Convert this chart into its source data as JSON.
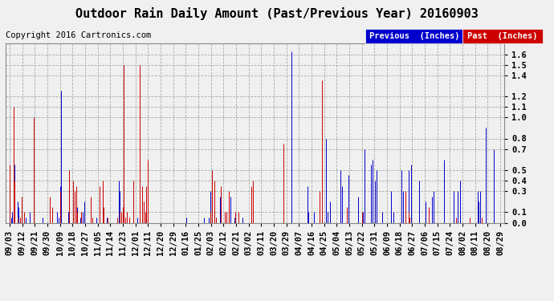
{
  "title": "Outdoor Rain Daily Amount (Past/Previous Year) 20160903",
  "copyright": "Copyright 2016 Cartronics.com",
  "legend_previous": "Previous  (Inches)",
  "legend_past": "Past  (Inches)",
  "legend_previous_color": "#0000cc",
  "legend_past_color": "#cc0000",
  "legend_previous_bg": "#0000cc",
  "legend_past_bg": "#cc0000",
  "yticks": [
    0.0,
    0.1,
    0.3,
    0.4,
    0.5,
    0.7,
    0.8,
    1.0,
    1.1,
    1.2,
    1.4,
    1.5,
    1.6
  ],
  "ylim": [
    0.0,
    1.7
  ],
  "bg_color": "#f0f0f0",
  "plot_bg_color": "#f0f0f0",
  "grid_color": "#aaaaaa",
  "title_fontsize": 11,
  "copyright_fontsize": 7.5,
  "tick_fontsize": 7.5,
  "legend_fontsize": 7.5,
  "x_labels": [
    "09/03",
    "09/12",
    "09/21",
    "09/30",
    "10/09",
    "10/18",
    "10/27",
    "11/05",
    "11/14",
    "11/23",
    "12/01",
    "12/11",
    "12/20",
    "12/29",
    "01/16",
    "01/25",
    "02/03",
    "02/12",
    "02/21",
    "03/02",
    "03/11",
    "03/20",
    "03/29",
    "04/07",
    "04/16",
    "04/25",
    "05/04",
    "05/13",
    "05/22",
    "05/31",
    "06/09",
    "06/18",
    "06/27",
    "07/06",
    "07/15",
    "07/24",
    "08/02",
    "08/11",
    "08/20",
    "08/29"
  ],
  "n_points": 370,
  "prev_data": [
    0.3,
    0.05,
    0.1,
    0.0,
    0.55,
    0.0,
    0.2,
    0.15,
    0.0,
    0.0,
    0.0,
    0.0,
    0.05,
    0.0,
    0.0,
    0.1,
    0.0,
    0.0,
    0.0,
    0.0,
    0.0,
    0.0,
    0.0,
    0.0,
    0.0,
    0.05,
    0.0,
    0.0,
    0.0,
    0.0,
    0.0,
    0.0,
    0.0,
    0.0,
    0.0,
    0.0,
    0.1,
    0.05,
    0.35,
    1.25,
    0.0,
    0.0,
    0.0,
    0.0,
    0.1,
    0.3,
    0.0,
    0.0,
    0.0,
    0.0,
    0.0,
    0.15,
    0.0,
    0.05,
    0.0,
    0.1,
    0.2,
    0.0,
    0.0,
    0.0,
    0.0,
    0.0,
    0.0,
    0.0,
    0.0,
    0.05,
    0.0,
    0.0,
    0.05,
    0.0,
    0.35,
    0.0,
    0.0,
    0.05,
    0.0,
    0.0,
    0.0,
    0.0,
    0.0,
    0.0,
    0.0,
    0.0,
    0.4,
    0.3,
    0.0,
    0.1,
    0.2,
    0.0,
    0.0,
    0.0,
    0.0,
    0.0,
    0.0,
    0.0,
    0.0,
    0.0,
    0.05,
    0.0,
    0.05,
    0.0,
    0.0,
    0.0,
    0.05,
    0.0,
    0.0,
    0.0,
    0.0,
    0.0,
    0.0,
    0.0,
    0.0,
    0.0,
    0.0,
    0.0,
    0.0,
    0.0,
    0.0,
    0.0,
    0.0,
    0.0,
    0.0,
    0.0,
    0.0,
    0.0,
    0.0,
    0.0,
    0.0,
    0.0,
    0.0,
    0.0,
    0.0,
    0.0,
    0.0,
    0.05,
    0.0,
    0.0,
    0.0,
    0.0,
    0.0,
    0.0,
    0.0,
    0.0,
    0.0,
    0.0,
    0.0,
    0.0,
    0.05,
    0.0,
    0.0,
    0.0,
    0.05,
    0.3,
    0.0,
    0.0,
    0.0,
    0.05,
    0.0,
    0.0,
    0.25,
    0.3,
    0.0,
    0.0,
    0.0,
    0.0,
    0.0,
    0.0,
    0.25,
    0.0,
    0.0,
    0.05,
    0.0,
    0.0,
    0.0,
    0.0,
    0.0,
    0.05,
    0.0,
    0.0,
    0.0,
    0.0,
    0.0,
    0.0,
    0.0,
    0.0,
    0.0,
    0.0,
    0.0,
    0.0,
    0.0,
    0.0,
    0.0,
    0.0,
    0.0,
    0.0,
    0.0,
    0.0,
    0.0,
    0.0,
    0.0,
    0.0,
    0.0,
    0.0,
    0.0,
    0.0,
    0.0,
    0.0,
    0.0,
    0.0,
    0.0,
    0.0,
    0.0,
    0.0,
    1.63,
    0.0,
    0.0,
    0.0,
    0.0,
    0.0,
    0.0,
    0.0,
    0.0,
    0.0,
    0.0,
    0.0,
    0.35,
    0.1,
    0.0,
    0.0,
    0.0,
    0.1,
    0.0,
    0.0,
    0.0,
    0.0,
    0.0,
    0.0,
    0.0,
    0.0,
    0.8,
    0.1,
    0.0,
    0.2,
    0.0,
    0.0,
    0.0,
    0.0,
    0.0,
    0.0,
    0.0,
    0.5,
    0.35,
    0.0,
    0.0,
    0.0,
    0.0,
    0.45,
    0.0,
    0.0,
    0.0,
    0.0,
    0.0,
    0.0,
    0.25,
    0.0,
    0.0,
    0.0,
    0.1,
    0.7,
    0.0,
    0.0,
    0.0,
    0.0,
    0.55,
    0.6,
    0.0,
    0.4,
    0.5,
    0.0,
    0.0,
    0.0,
    0.1,
    0.0,
    0.0,
    0.0,
    0.0,
    0.0,
    0.0,
    0.3,
    0.0,
    0.1,
    0.0,
    0.0,
    0.0,
    0.0,
    0.0,
    0.5,
    0.3,
    0.0,
    0.0,
    0.0,
    0.5,
    0.0,
    0.55,
    0.0,
    0.0,
    0.0,
    0.0,
    0.0,
    0.4,
    0.0,
    0.0,
    0.0,
    0.0,
    0.2,
    0.0,
    0.0,
    0.0,
    0.0,
    0.25,
    0.3,
    0.0,
    0.0,
    0.0,
    0.0,
    0.0,
    0.0,
    0.0,
    0.6,
    0.0,
    0.0,
    0.0,
    0.0,
    0.0,
    0.0,
    0.3,
    0.0,
    0.0,
    0.3,
    0.0,
    0.4,
    0.0,
    0.0,
    0.0,
    0.0,
    0.0,
    0.0,
    0.0,
    0.0,
    0.0,
    0.0,
    0.0,
    0.0,
    0.3,
    0.2,
    0.3,
    0.0,
    0.0,
    0.0,
    0.9,
    0.0,
    0.0,
    0.0,
    0.0,
    0.0,
    0.7,
    0.0,
    0.0,
    0.0,
    0.0,
    0.0,
    0.0,
    0.0
  ],
  "past_data": [
    0.55,
    0.0,
    0.0,
    1.1,
    0.4,
    0.0,
    0.05,
    0.0,
    0.05,
    0.25,
    0.0,
    0.1,
    0.0,
    0.0,
    0.0,
    0.0,
    0.0,
    0.0,
    1.0,
    0.0,
    0.0,
    0.0,
    0.0,
    0.0,
    0.0,
    0.0,
    0.0,
    0.0,
    0.0,
    0.0,
    0.25,
    0.0,
    0.15,
    0.0,
    0.0,
    0.0,
    0.0,
    0.0,
    0.3,
    0.0,
    0.0,
    0.0,
    0.0,
    0.0,
    0.0,
    0.5,
    0.0,
    0.0,
    0.4,
    0.3,
    0.35,
    0.1,
    0.0,
    0.0,
    0.1,
    0.0,
    0.0,
    0.0,
    0.0,
    0.0,
    0.0,
    0.25,
    0.05,
    0.0,
    0.0,
    0.0,
    0.0,
    0.0,
    0.35,
    0.0,
    0.4,
    0.15,
    0.0,
    0.0,
    0.05,
    0.0,
    0.0,
    0.0,
    0.0,
    0.0,
    0.0,
    0.05,
    0.0,
    0.1,
    0.1,
    0.15,
    1.5,
    0.05,
    0.1,
    0.0,
    0.05,
    0.0,
    0.0,
    0.4,
    0.0,
    0.0,
    0.0,
    0.0,
    1.5,
    0.0,
    0.35,
    0.2,
    0.1,
    0.35,
    0.6,
    0.0,
    0.0,
    0.0,
    0.0,
    0.0,
    0.0,
    0.0,
    0.0,
    0.0,
    0.0,
    0.0,
    0.0,
    0.0,
    0.0,
    0.0,
    0.0,
    0.0,
    0.0,
    0.0,
    0.0,
    0.0,
    0.0,
    0.0,
    0.0,
    0.0,
    0.0,
    0.0,
    0.0,
    0.0,
    0.0,
    0.0,
    0.0,
    0.0,
    0.0,
    0.0,
    0.0,
    0.0,
    0.0,
    0.0,
    0.0,
    0.0,
    0.0,
    0.0,
    0.0,
    0.0,
    0.0,
    0.1,
    0.5,
    0.0,
    0.4,
    0.05,
    0.0,
    0.0,
    0.0,
    0.35,
    0.0,
    0.0,
    0.1,
    0.1,
    0.0,
    0.3,
    0.0,
    0.0,
    0.0,
    0.0,
    0.1,
    0.0,
    0.1,
    0.0,
    0.0,
    0.0,
    0.0,
    0.0,
    0.0,
    0.0,
    0.0,
    0.0,
    0.35,
    0.4,
    0.0,
    0.0,
    0.0,
    0.0,
    0.0,
    0.0,
    0.0,
    0.0,
    0.0,
    0.0,
    0.0,
    0.0,
    0.0,
    0.0,
    0.0,
    0.0,
    0.0,
    0.0,
    0.0,
    0.0,
    0.0,
    0.0,
    0.75,
    0.0,
    0.0,
    0.0,
    0.0,
    0.0,
    0.0,
    0.0,
    0.0,
    0.0,
    0.0,
    0.0,
    0.0,
    0.0,
    0.0,
    0.0,
    0.0,
    0.0,
    0.0,
    0.0,
    0.0,
    0.0,
    0.0,
    0.0,
    0.0,
    0.0,
    0.0,
    0.3,
    0.0,
    1.35,
    0.0,
    0.0,
    0.0,
    0.0,
    0.0,
    0.0,
    0.0,
    0.0,
    0.0,
    0.0,
    0.0,
    0.0,
    0.0,
    0.0,
    0.0,
    0.0,
    0.0,
    0.0,
    0.15,
    0.0,
    0.0,
    0.0,
    0.0,
    0.0,
    0.0,
    0.0,
    0.0,
    0.0,
    0.0,
    0.1,
    0.0,
    0.0,
    0.0,
    0.0,
    0.0,
    0.0,
    0.0,
    0.0,
    0.0,
    0.0,
    0.0,
    0.0,
    0.0,
    0.0,
    0.0,
    0.0,
    0.0,
    0.0,
    0.0,
    0.0,
    0.0,
    0.0,
    0.0,
    0.0,
    0.0,
    0.0,
    0.0,
    0.0,
    0.0,
    0.0,
    0.0,
    0.0,
    0.3,
    0.0,
    0.1,
    0.05,
    0.0,
    0.0,
    0.0,
    0.0,
    0.0,
    0.0,
    0.0,
    0.0,
    0.0,
    0.0,
    0.0,
    0.0,
    0.0,
    0.15,
    0.0,
    0.0,
    0.0,
    0.0,
    0.0,
    0.0,
    0.0,
    0.0,
    0.0,
    0.0,
    0.0,
    0.0,
    0.0,
    0.0,
    0.0,
    0.0,
    0.0,
    0.0,
    0.0,
    0.0,
    0.05,
    0.0,
    0.0,
    0.0,
    0.0,
    0.0,
    0.0,
    0.0,
    0.0,
    0.0,
    0.05,
    0.0,
    0.0,
    0.0,
    0.0,
    0.0,
    0.0,
    0.0,
    0.0,
    0.05
  ]
}
